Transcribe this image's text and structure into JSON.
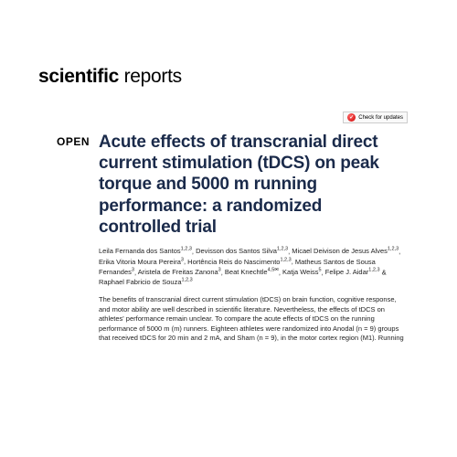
{
  "journal": {
    "bold": "scientific",
    "light": " reports"
  },
  "checkUpdates": {
    "label": "Check for updates",
    "mark": "✓"
  },
  "openLabel": "OPEN",
  "title": "Acute effects of transcranial direct current stimulation (tDCS) on peak torque and 5000 m running performance: a randomized controlled trial",
  "authors": [
    {
      "name": "Leila Fernanda dos Santos",
      "aff": "1,2,3"
    },
    {
      "name": "Devisson dos Santos Silva",
      "aff": "1,2,3"
    },
    {
      "name": "Micael Deivison de Jesus Alves",
      "aff": "1,2,3"
    },
    {
      "name": "Erika Vitoria Moura Pereira",
      "aff": "3"
    },
    {
      "name": "Hortência Reis do Nascimento",
      "aff": "1,2,3"
    },
    {
      "name": "Matheus Santos de Sousa Fernandes",
      "aff": "3"
    },
    {
      "name": "Aristela de Freitas Zanona",
      "aff": "3"
    },
    {
      "name": "Beat Knechtle",
      "aff": "4,5✉"
    },
    {
      "name": "Katja Weiss",
      "aff": "5"
    },
    {
      "name": "Felipe J. Aidar",
      "aff": "1,2,3"
    },
    {
      "name": "Raphael Fabricio de Souza",
      "aff": "1,2,3",
      "last": true
    }
  ],
  "abstract": "The benefits of transcranial direct current stimulation (tDCS) on brain function, cognitive response, and motor ability are well described in scientific literature. Nevertheless, the effects of tDCS on athletes' performance remain unclear. To compare the acute effects of tDCS on the running performance of 5000 m (m) runners. Eighteen athletes were randomized into Anodal (n = 9) groups that received tDCS for 20 min and 2 mA, and Sham (n = 9), in the motor cortex region (M1). Running"
}
